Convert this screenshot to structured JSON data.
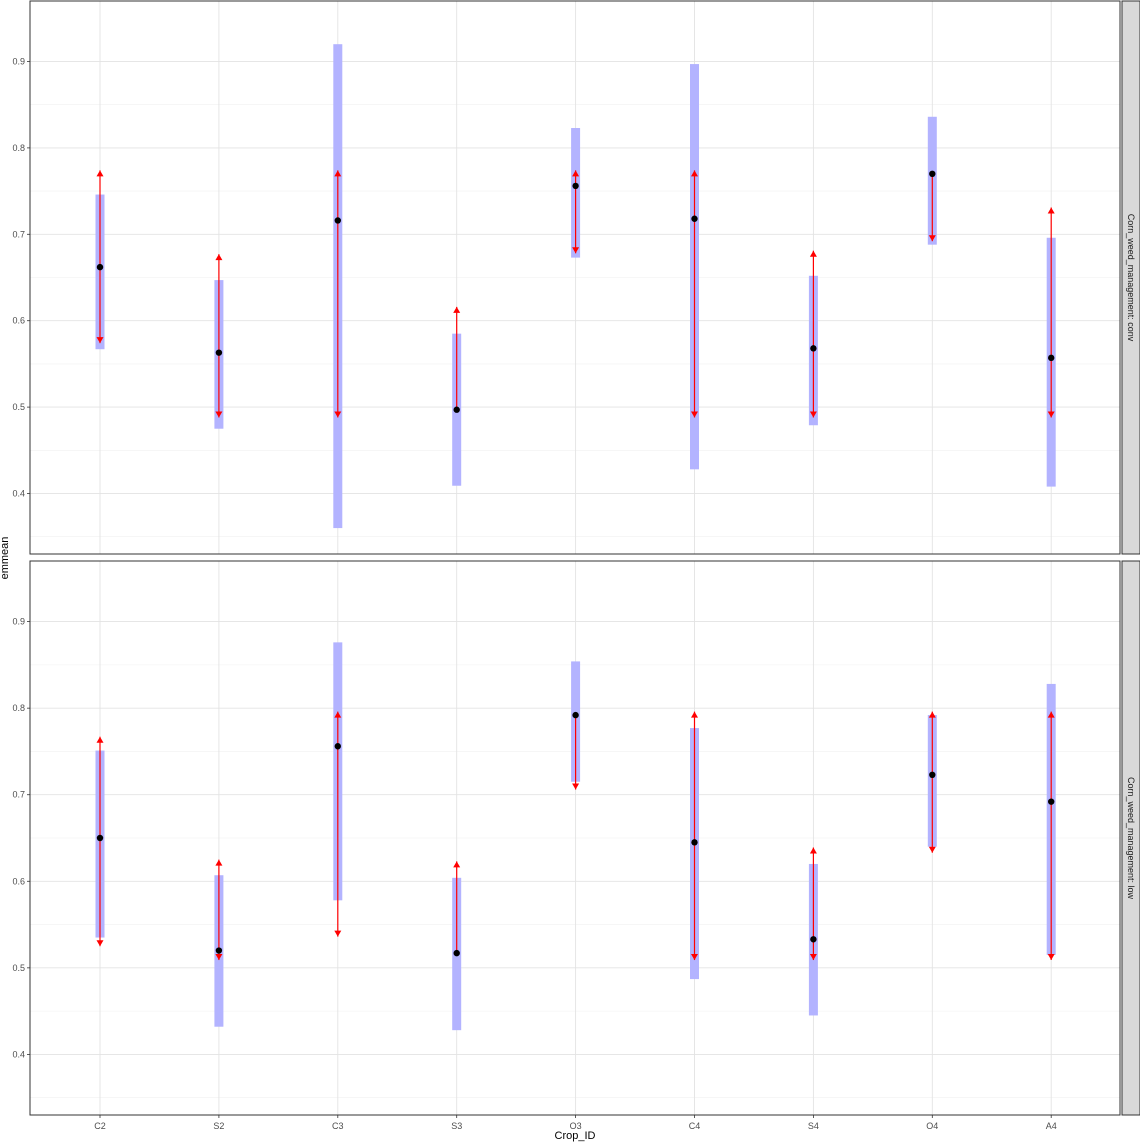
{
  "chart_data": {
    "type": "scatter",
    "xlabel": "Crop_ID",
    "ylabel": "emmean",
    "categories": [
      "C2",
      "S2",
      "C3",
      "S3",
      "O3",
      "C4",
      "S4",
      "O4",
      "A4"
    ],
    "ylim": [
      0.33,
      0.97
    ],
    "yticks": [
      "0.4",
      "0.5",
      "0.6",
      "0.7",
      "0.8",
      "0.9"
    ],
    "grid": true,
    "colors": {
      "ci_band": "#b3b3ff",
      "comparison_arrow": "#ff0000",
      "point": "#000000",
      "strip": "#d9d9d9"
    },
    "panels": [
      {
        "strip": "Corn_weed_management: conv",
        "emmean": [
          0.662,
          0.563,
          0.716,
          0.497,
          0.756,
          0.718,
          0.568,
          0.77,
          0.557
        ],
        "lower_CL": [
          0.567,
          0.475,
          0.36,
          0.409,
          0.673,
          0.428,
          0.479,
          0.688,
          0.408
        ],
        "upper_CL": [
          0.746,
          0.647,
          0.92,
          0.585,
          0.823,
          0.897,
          0.652,
          0.836,
          0.696
        ],
        "arrow_low": [
          0.574,
          0.488,
          0.488,
          null,
          0.678,
          0.488,
          0.488,
          0.692,
          0.488
        ],
        "arrow_high": [
          0.774,
          0.677,
          0.774,
          0.616,
          0.774,
          0.774,
          0.681,
          null,
          0.731
        ]
      },
      {
        "strip": "Corn_weed_management: low",
        "emmean": [
          0.65,
          0.52,
          0.756,
          0.517,
          0.792,
          0.645,
          0.533,
          0.723,
          0.692
        ],
        "lower_CL": [
          0.535,
          0.432,
          0.578,
          0.428,
          0.715,
          0.487,
          0.445,
          0.64,
          0.515
        ],
        "upper_CL": [
          0.751,
          0.607,
          0.876,
          0.604,
          0.854,
          0.777,
          0.62,
          0.792,
          0.828
        ],
        "arrow_low": [
          0.525,
          0.509,
          0.536,
          null,
          0.706,
          0.509,
          0.509,
          0.633,
          0.509
        ],
        "arrow_high": [
          0.767,
          0.625,
          0.796,
          0.623,
          null,
          0.796,
          0.639,
          0.796,
          0.796
        ]
      }
    ]
  }
}
